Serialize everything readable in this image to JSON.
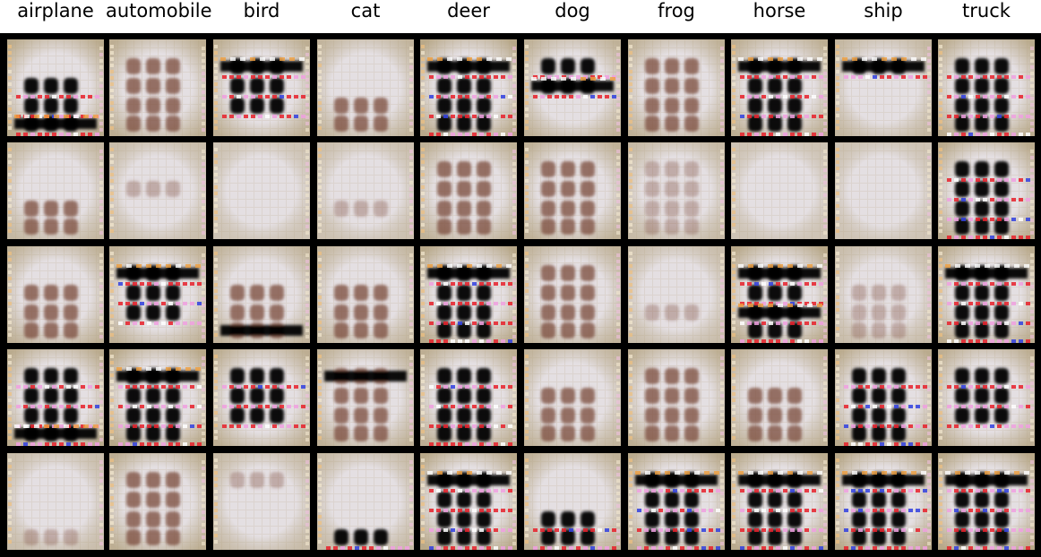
{
  "classes": [
    "airplane",
    "automobile",
    "bird",
    "cat",
    "deer",
    "dog",
    "frog",
    "horse",
    "ship",
    "truck"
  ],
  "rows": 5,
  "colors": {
    "frame": "#000000",
    "header_bg": "#ffffff",
    "pale": "#e4dfe2",
    "tan": "#b3a27f",
    "dark_blob": "#000000",
    "brown_blob": "#7a4a38",
    "red_spot": "#e8202a",
    "magenta_spot": "#f0a0e0",
    "blue_spot": "#3040e0"
  },
  "samples": [
    [
      {
        "style": "heavy",
        "blob_rows": [
          1,
          2,
          3
        ],
        "bars": [
          3
        ],
        "fade": 0.1
      },
      {
        "style": "medium",
        "blob_rows": [
          0,
          1,
          2,
          3
        ],
        "bars": [],
        "fade": 0.2
      },
      {
        "style": "heavy",
        "blob_rows": [
          0,
          1,
          2
        ],
        "bars": [
          0
        ],
        "fade": 0.2
      },
      {
        "style": "medium",
        "blob_rows": [
          2,
          3
        ],
        "bars": [],
        "fade": 0.4
      },
      {
        "style": "heavy",
        "blob_rows": [
          0,
          1,
          2,
          3
        ],
        "bars": [
          0
        ],
        "fade": 0.0
      },
      {
        "style": "heavy",
        "blob_rows": [
          0,
          1
        ],
        "bars": [
          1
        ],
        "fade": 0.3
      },
      {
        "style": "medium",
        "blob_rows": [
          0,
          1,
          2,
          3
        ],
        "bars": [],
        "fade": 0.3
      },
      {
        "style": "heavy",
        "blob_rows": [
          0,
          1,
          2,
          3
        ],
        "bars": [
          0
        ],
        "fade": 0.2
      },
      {
        "style": "heavy",
        "blob_rows": [
          0
        ],
        "bars": [
          0
        ],
        "fade": 0.5
      },
      {
        "style": "heavy",
        "blob_rows": [
          0,
          1,
          2,
          3
        ],
        "bars": [],
        "fade": 0.1
      }
    ],
    [
      {
        "style": "medium",
        "blob_rows": [
          2,
          3
        ],
        "bars": [],
        "fade": 0.5
      },
      {
        "style": "faint",
        "blob_rows": [
          1
        ],
        "bars": [],
        "fade": 0.7
      },
      {
        "style": "none",
        "blob_rows": [],
        "bars": [],
        "fade": 0.9
      },
      {
        "style": "faint",
        "blob_rows": [
          2
        ],
        "bars": [],
        "fade": 0.8
      },
      {
        "style": "medium",
        "blob_rows": [
          0,
          1,
          2,
          3
        ],
        "bars": [],
        "fade": 0.3
      },
      {
        "style": "medium",
        "blob_rows": [
          0,
          1,
          2,
          3
        ],
        "bars": [],
        "fade": 0.3
      },
      {
        "style": "faint",
        "blob_rows": [
          0,
          1,
          2,
          3
        ],
        "bars": [],
        "fade": 0.6
      },
      {
        "style": "none",
        "blob_rows": [],
        "bars": [],
        "fade": 0.9
      },
      {
        "style": "none",
        "blob_rows": [],
        "bars": [],
        "fade": 0.9
      },
      {
        "style": "heavy",
        "blob_rows": [
          0,
          1,
          2,
          3
        ],
        "bars": [],
        "fade": 0.1
      }
    ],
    [
      {
        "style": "medium",
        "blob_rows": [
          1,
          2,
          3
        ],
        "bars": [],
        "fade": 0.3
      },
      {
        "style": "heavy",
        "blob_rows": [
          0,
          1,
          2
        ],
        "bars": [
          0
        ],
        "fade": 0.3
      },
      {
        "style": "medium",
        "blob_rows": [
          1,
          2,
          3
        ],
        "bars": [
          3
        ],
        "fade": 0.4
      },
      {
        "style": "medium",
        "blob_rows": [
          1,
          2,
          3
        ],
        "bars": [],
        "fade": 0.5
      },
      {
        "style": "heavy",
        "blob_rows": [
          0,
          1,
          2,
          3
        ],
        "bars": [
          0
        ],
        "fade": 0.0
      },
      {
        "style": "medium",
        "blob_rows": [
          0,
          1,
          2,
          3
        ],
        "bars": [],
        "fade": 0.4
      },
      {
        "style": "faint",
        "blob_rows": [
          2
        ],
        "bars": [],
        "fade": 0.7
      },
      {
        "style": "heavy",
        "blob_rows": [
          0,
          1,
          2,
          3
        ],
        "bars": [
          0,
          2
        ],
        "fade": 0.0
      },
      {
        "style": "faint",
        "blob_rows": [
          1,
          2,
          3
        ],
        "bars": [],
        "fade": 0.7
      },
      {
        "style": "heavy",
        "blob_rows": [
          0,
          1,
          2,
          3
        ],
        "bars": [
          0
        ],
        "fade": 0.1
      }
    ],
    [
      {
        "style": "heavy",
        "blob_rows": [
          0,
          1,
          2,
          3
        ],
        "bars": [
          3
        ],
        "fade": 0.1
      },
      {
        "style": "heavy",
        "blob_rows": [
          0,
          1,
          2,
          3
        ],
        "bars": [
          0
        ],
        "fade": 0.0
      },
      {
        "style": "heavy",
        "blob_rows": [
          0,
          1,
          2
        ],
        "bars": [],
        "fade": 0.2
      },
      {
        "style": "medium",
        "blob_rows": [
          0,
          1,
          2,
          3
        ],
        "bars": [
          0
        ],
        "fade": 0.3
      },
      {
        "style": "heavy",
        "blob_rows": [
          0,
          1,
          2,
          3
        ],
        "bars": [],
        "fade": 0.2
      },
      {
        "style": "medium",
        "blob_rows": [
          1,
          2,
          3
        ],
        "bars": [],
        "fade": 0.4
      },
      {
        "style": "medium",
        "blob_rows": [
          0,
          1,
          2,
          3
        ],
        "bars": [],
        "fade": 0.2
      },
      {
        "style": "medium",
        "blob_rows": [
          1,
          2,
          3
        ],
        "bars": [],
        "fade": 0.3
      },
      {
        "style": "heavy",
        "blob_rows": [
          0,
          1,
          2,
          3
        ],
        "bars": [],
        "fade": 0.1
      },
      {
        "style": "heavy",
        "blob_rows": [
          0,
          1,
          2
        ],
        "bars": [],
        "fade": 0.2
      }
    ],
    [
      {
        "style": "faint",
        "blob_rows": [
          3
        ],
        "bars": [],
        "fade": 0.7
      },
      {
        "style": "medium",
        "blob_rows": [
          0,
          1,
          2,
          3
        ],
        "bars": [],
        "fade": 0.2
      },
      {
        "style": "faint",
        "blob_rows": [
          0
        ],
        "bars": [],
        "fade": 0.6
      },
      {
        "style": "heavy",
        "blob_rows": [
          3
        ],
        "bars": [],
        "fade": 0.6
      },
      {
        "style": "heavy",
        "blob_rows": [
          0,
          1,
          2,
          3
        ],
        "bars": [
          0
        ],
        "fade": 0.0
      },
      {
        "style": "heavy",
        "blob_rows": [
          2,
          3
        ],
        "bars": [],
        "fade": 0.3
      },
      {
        "style": "heavy",
        "blob_rows": [
          0,
          1,
          2,
          3
        ],
        "bars": [
          0
        ],
        "fade": 0.1
      },
      {
        "style": "heavy",
        "blob_rows": [
          0,
          1,
          2,
          3
        ],
        "bars": [
          0
        ],
        "fade": 0.1
      },
      {
        "style": "heavy",
        "blob_rows": [
          0,
          1,
          2,
          3
        ],
        "bars": [
          0
        ],
        "fade": 0.0
      },
      {
        "style": "heavy",
        "blob_rows": [
          0,
          1,
          2,
          3
        ],
        "bars": [
          0
        ],
        "fade": 0.0
      }
    ]
  ]
}
